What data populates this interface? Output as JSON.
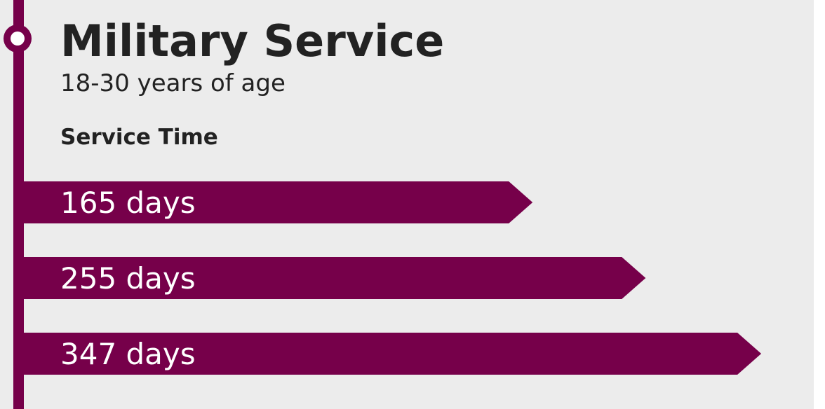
{
  "chart_data": {
    "type": "bar",
    "orientation": "horizontal",
    "title": "Military Service",
    "subtitle": "18-30 years of age",
    "y_label": "Service Time",
    "categories": [
      null,
      null,
      null
    ],
    "values": [
      165,
      255,
      347
    ],
    "value_labels": [
      "165 days",
      "255 days",
      "347 days"
    ],
    "color": "#76004a",
    "xlim": [
      -240,
      400
    ]
  }
}
